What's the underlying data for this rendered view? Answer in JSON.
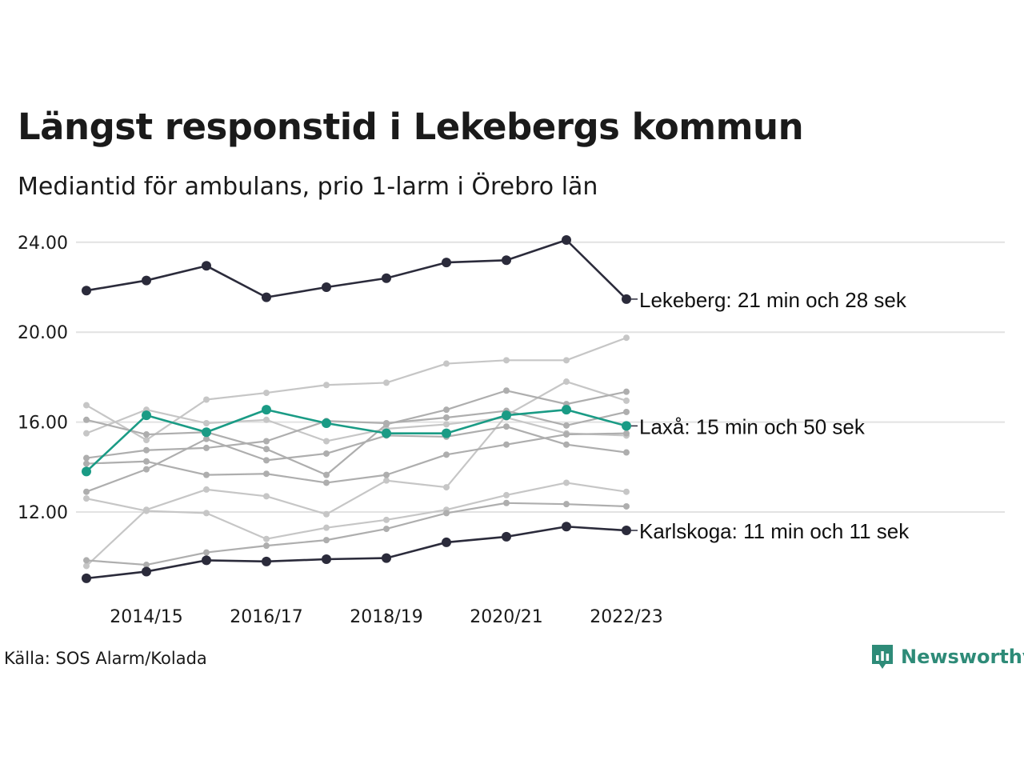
{
  "title": "Längst responstid i Lekebergs kommun",
  "subtitle": "Mediantid för ambulans, prio 1-larm i Örebro län",
  "source": "Källa: SOS Alarm/Kolada",
  "brand": "Newsworthy",
  "colors": {
    "highlight": "#1a9b85",
    "dark": "#2b2b3b",
    "grey_light": "#c6c6c6",
    "grey_mid": "#aeaeae",
    "grid": "#e2e2e2",
    "brand": "#2e8b78"
  },
  "chart_data": {
    "type": "line",
    "x": [
      "2013/14",
      "2014/15",
      "2015/16",
      "2016/17",
      "2017/18",
      "2018/19",
      "2019/20",
      "2020/21",
      "2021/22",
      "2022/23"
    ],
    "x_tick_labels": [
      "2014/15",
      "2016/17",
      "2018/19",
      "2020/21",
      "2022/23"
    ],
    "y_tick_labels": [
      "24.00",
      "20.00",
      "16.00",
      "12.00"
    ],
    "yticks": [
      12,
      16,
      20,
      24
    ],
    "ylim": [
      9.05,
      24.25
    ],
    "grid": "horizontal",
    "legend": "none",
    "series": [
      {
        "name": "Lekeberg",
        "label": "Lekeberg: 21 min och 28 sek",
        "role": "dark",
        "values": [
          21.85,
          22.3,
          22.95,
          21.55,
          22.0,
          22.4,
          23.1,
          23.2,
          24.1,
          21.47
        ]
      },
      {
        "name": "Laxå",
        "label": "Laxå: 15 min och 50 sek",
        "role": "highlight",
        "values": [
          13.8,
          16.3,
          15.55,
          16.55,
          15.95,
          15.5,
          15.5,
          16.3,
          16.55,
          15.83
        ]
      },
      {
        "name": "Karlskoga",
        "label": "Karlskoga: 11 min och 11 sek",
        "role": "dark",
        "values": [
          9.05,
          9.35,
          9.85,
          9.8,
          9.9,
          9.95,
          10.65,
          10.9,
          11.35,
          11.18
        ]
      },
      {
        "role": "grey_light",
        "values": [
          9.6,
          12.1,
          13.0,
          12.7,
          11.9,
          13.4,
          13.1,
          16.3,
          17.8,
          16.95
        ]
      },
      {
        "role": "grey_light",
        "values": [
          15.5,
          16.55,
          15.95,
          16.1,
          15.15,
          15.7,
          15.9,
          16.2,
          15.5,
          15.4
        ]
      },
      {
        "role": "grey_light",
        "values": [
          16.75,
          15.2,
          17.0,
          17.3,
          17.65,
          17.75,
          18.6,
          18.75,
          18.75,
          19.75
        ]
      },
      {
        "role": "grey_light",
        "values": [
          12.6,
          12.05,
          11.95,
          10.8,
          11.3,
          11.65,
          12.1,
          12.75,
          13.3,
          12.9
        ]
      },
      {
        "role": "grey_mid",
        "values": [
          16.1,
          15.45,
          15.55,
          14.8,
          13.65,
          15.9,
          16.55,
          17.4,
          16.8,
          17.35
        ]
      },
      {
        "role": "grey_mid",
        "values": [
          14.4,
          14.75,
          14.85,
          15.15,
          16.05,
          15.95,
          16.2,
          16.5,
          15.85,
          16.45
        ]
      },
      {
        "role": "grey_mid",
        "values": [
          14.15,
          14.25,
          13.65,
          13.7,
          13.3,
          13.65,
          14.55,
          15.0,
          15.45,
          15.5
        ]
      },
      {
        "role": "grey_mid",
        "values": [
          12.9,
          13.9,
          15.25,
          14.3,
          14.6,
          15.4,
          15.35,
          15.8,
          15.0,
          14.65
        ]
      },
      {
        "role": "grey_mid",
        "values": [
          9.85,
          9.65,
          10.2,
          10.5,
          10.75,
          11.25,
          11.95,
          12.4,
          12.35,
          12.25
        ]
      }
    ]
  }
}
